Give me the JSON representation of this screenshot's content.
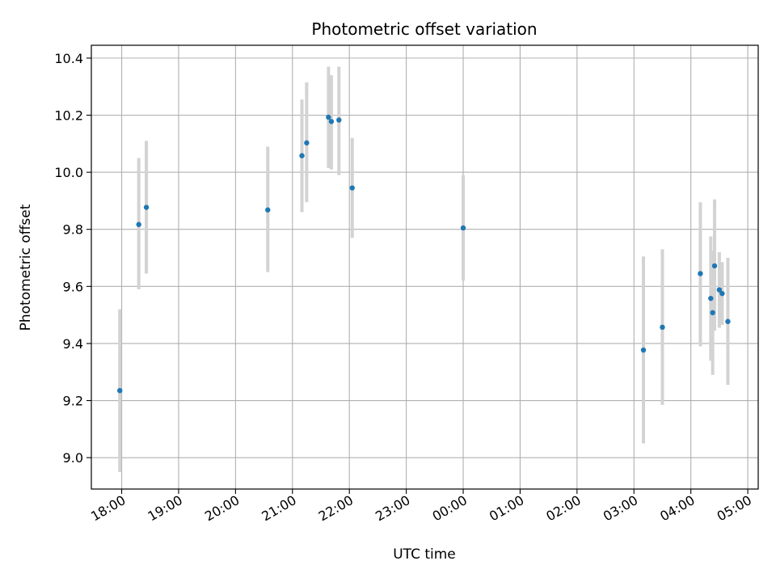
{
  "chart_data": {
    "type": "scatter",
    "title": "Photometric offset variation",
    "xlabel": "UTC time",
    "ylabel": "Photometric offset",
    "x_ticks": [
      "18:00",
      "19:00",
      "20:00",
      "21:00",
      "22:00",
      "23:00",
      "00:00",
      "01:00",
      "02:00",
      "03:00",
      "04:00",
      "05:00"
    ],
    "y_ticks": [
      "9.0",
      "9.2",
      "9.4",
      "9.6",
      "9.8",
      "10.0",
      "10.2",
      "10.4"
    ],
    "xlim": [
      "17:28",
      "05:11"
    ],
    "ylim": [
      8.89,
      10.445
    ],
    "grid": true,
    "colors": {
      "points": "#1f77b4",
      "error_bars": "#d3d3d3",
      "grid": "#b0b0b0"
    },
    "series": [
      {
        "points": [
          {
            "x": "17:58",
            "y": 9.235,
            "lo": 8.95,
            "hi": 9.52
          },
          {
            "x": "18:18",
            "y": 9.817,
            "lo": 9.59,
            "hi": 10.05
          },
          {
            "x": "18:26",
            "y": 9.877,
            "lo": 9.645,
            "hi": 10.11
          },
          {
            "x": "20:34",
            "y": 9.868,
            "lo": 9.65,
            "hi": 10.09
          },
          {
            "x": "21:10",
            "y": 10.058,
            "lo": 9.86,
            "hi": 10.255
          },
          {
            "x": "21:15",
            "y": 10.103,
            "lo": 9.895,
            "hi": 10.315
          },
          {
            "x": "21:38",
            "y": 10.193,
            "lo": 10.015,
            "hi": 10.37
          },
          {
            "x": "21:41",
            "y": 10.178,
            "lo": 10.01,
            "hi": 10.34
          },
          {
            "x": "21:49",
            "y": 10.183,
            "lo": 9.99,
            "hi": 10.37
          },
          {
            "x": "22:03",
            "y": 9.945,
            "lo": 9.77,
            "hi": 10.12
          },
          {
            "x": "00:00",
            "y": 9.805,
            "lo": 9.62,
            "hi": 9.99
          },
          {
            "x": "03:10",
            "y": 9.377,
            "lo": 9.05,
            "hi": 9.705
          },
          {
            "x": "03:30",
            "y": 9.457,
            "lo": 9.185,
            "hi": 9.73
          },
          {
            "x": "04:10",
            "y": 9.645,
            "lo": 9.39,
            "hi": 9.895
          },
          {
            "x": "04:21",
            "y": 9.558,
            "lo": 9.34,
            "hi": 9.775
          },
          {
            "x": "04:23",
            "y": 9.508,
            "lo": 9.29,
            "hi": 9.725
          },
          {
            "x": "04:25",
            "y": 9.672,
            "lo": 9.445,
            "hi": 9.905
          },
          {
            "x": "04:30",
            "y": 9.588,
            "lo": 9.455,
            "hi": 9.72
          },
          {
            "x": "04:33",
            "y": 9.575,
            "lo": 9.465,
            "hi": 9.685
          },
          {
            "x": "04:39",
            "y": 9.477,
            "lo": 9.255,
            "hi": 9.7
          }
        ]
      }
    ]
  }
}
